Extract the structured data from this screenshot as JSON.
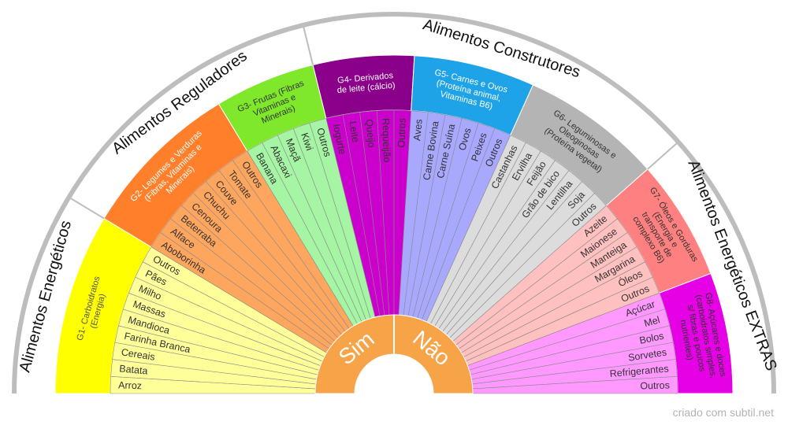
{
  "diagram": {
    "credit": "criado com subtil.net",
    "center": {
      "left_label": "Sim",
      "right_label": "Não",
      "color": "#f7a347"
    },
    "categories": [
      {
        "label": "Alimentos Energéticos",
        "from_group": 0,
        "to_group": 0
      },
      {
        "label": "Alimentos Reguladores",
        "from_group": 1,
        "to_group": 2
      },
      {
        "label": "Alimentos Construtores",
        "from_group": 3,
        "to_group": 5
      },
      {
        "label": "Alimentos Energéticos EXTRAS",
        "from_group": 6,
        "to_group": 7
      }
    ],
    "groups": [
      {
        "id": "g1",
        "title": "G1- Carboidratos (Energia)",
        "title_lines": [
          "G1- Carboidratos",
          "(Energia)"
        ],
        "header_color": "#ffff00",
        "item_color": "#ffff99",
        "title_color": "#555555",
        "items": [
          "Arroz",
          "Batata",
          "Cereais",
          "Farinha Branca",
          "Mandioca",
          "Massas",
          "Milho",
          "Pães",
          "Outros"
        ]
      },
      {
        "id": "g2",
        "title": "G2- Legumes e Verduras (Fibras, Vitaminas e Minerais)",
        "title_lines": [
          "G2- Legumes e Verduras",
          "(Fibras, Vitaminas e",
          "Minerais)"
        ],
        "header_color": "#ff7f2a",
        "item_color": "#ffa65e",
        "title_color": "#ffffff",
        "items": [
          "Aboborinha",
          "Alface",
          "Beterraba",
          "Cenoura",
          "Chuchu",
          "Couve",
          "Tomate",
          "Outros"
        ]
      },
      {
        "id": "g3",
        "title": "G3- Frutas (Fibras Vitaminas e Minerais)",
        "title_lines": [
          "G3- Frutas (Fibras",
          "Vitaminas e",
          "Minerais)"
        ],
        "header_color": "#7fe82a",
        "item_color": "#a5f5a5",
        "title_color": "#333333",
        "items": [
          "Banana",
          "Abacaxi",
          "Maçã",
          "Kiwi",
          "Outros"
        ]
      },
      {
        "id": "g4",
        "title": "G4- Derivados de leite (cálcio)",
        "title_lines": [
          "G4- Derivados",
          "de leite (cálcio)"
        ],
        "header_color": "#8b008b",
        "item_color": "#cc00cc",
        "title_color": "#ffffff",
        "items": [
          "Iogurte",
          "Leite",
          "Queijo",
          "Requeijão",
          "Outros"
        ]
      },
      {
        "id": "g5",
        "title": "G5- Carnes e Ovos (Proteína animal, Vitaminas B6)",
        "title_lines": [
          "G5- Carnes e Ovos",
          "(Proteína animal,",
          "Vitaminas B6)"
        ],
        "header_color": "#1fa3e8",
        "item_color": "#a8a8ff",
        "title_color": "#ffffff",
        "items": [
          "Aves",
          "Carne Bovina",
          "Carne Suína",
          "Ovos",
          "Peixes",
          "Outros"
        ]
      },
      {
        "id": "g6",
        "title": "G6- Leguminosas e Oleoginosas (Proteína vegetal)",
        "title_lines": [
          "G6- Leguminosas e",
          "Oleoginosas",
          "(Proteína vegetal)"
        ],
        "header_color": "#b4b4b4",
        "item_color": "#dcdcdc",
        "title_color": "#333333",
        "items": [
          "Castanhas",
          "Ervilha",
          "Feijão",
          "Grão de bico",
          "Lentilha",
          "Soja",
          "Outros"
        ]
      },
      {
        "id": "g7",
        "title": "G7- Óleos e Gorduras (Energia e transporte de complexo B6)",
        "title_lines": [
          "G7- Óleos e Gorduras",
          "(Energia e",
          "transporte de",
          "complexo B6)"
        ],
        "header_color": "#ff8080",
        "item_color": "#ffc0c0",
        "title_color": "#333333",
        "items": [
          "Azeite",
          "Maionese",
          "Manteiga",
          "Margarina",
          "Óleos",
          "Outros"
        ]
      },
      {
        "id": "g8",
        "title": "G8- Açúcares e doces (carboidratos simples, s/ fibras e poucos nutrientes)",
        "title_lines": [
          "G8- Açúcares e doces",
          "(carboidratos simples,",
          "s/ fibras e poucos",
          "nutrientes)"
        ],
        "header_color": "#e600e6",
        "item_color": "#ff99ff",
        "title_color": "#333333",
        "items": [
          "Açúcar",
          "Mel",
          "Bolos",
          "Sorvetes",
          "Refrigerantes",
          "Outros"
        ]
      }
    ]
  }
}
